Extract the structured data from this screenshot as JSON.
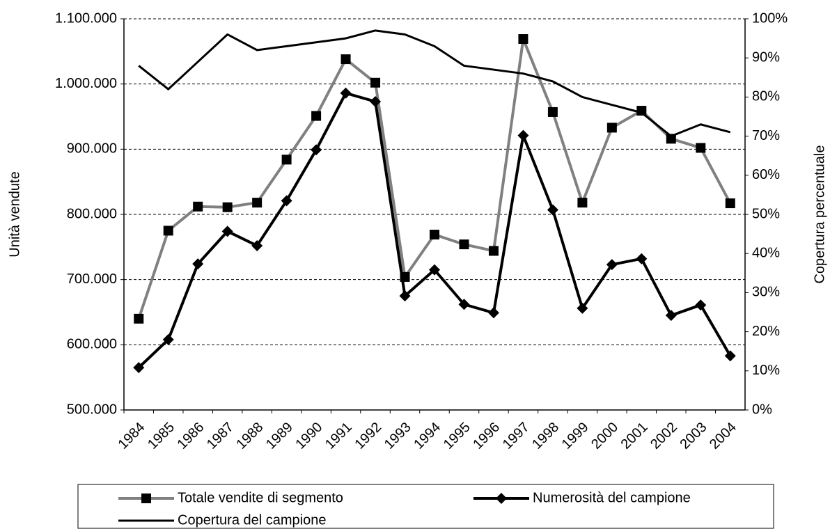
{
  "chart_data": {
    "type": "line",
    "x_label": "",
    "y_label": "Unità vendute",
    "y2_label": "Copertura percentuale",
    "categories": [
      "1984",
      "1985",
      "1986",
      "1987",
      "1988",
      "1989",
      "1990",
      "1991",
      "1992",
      "1993",
      "1994",
      "1995",
      "1996",
      "1997",
      "1998",
      "1999",
      "2000",
      "2001",
      "2002",
      "2003",
      "2004"
    ],
    "series": [
      {
        "name": "Totale vendite di segmento",
        "color": "#808080",
        "marker": "square",
        "values": [
          640000,
          775000,
          812000,
          811000,
          818000,
          884000,
          951000,
          1038000,
          1002000,
          704000,
          769000,
          754000,
          744000,
          1069000,
          957000,
          818000,
          933000,
          959000,
          916000,
          902000,
          817000
        ]
      },
      {
        "name": "Numerosità del campione",
        "color": "#000000",
        "marker": "diamond",
        "values": [
          565000,
          608000,
          724000,
          774000,
          752000,
          821000,
          899000,
          986000,
          973000,
          675000,
          715000,
          662000,
          649000,
          921000,
          807000,
          656000,
          723000,
          732000,
          645000,
          661000,
          583000
        ]
      },
      {
        "name": "Copertura del campione",
        "color": "#000000",
        "axis": "y2",
        "values": [
          88,
          82,
          89,
          96,
          92,
          93,
          94,
          95,
          97,
          96,
          93,
          88,
          87,
          86,
          84,
          80,
          78,
          76,
          70,
          73,
          71
        ]
      }
    ],
    "ylim": [
      500000,
      1100000
    ],
    "yticks": [
      {
        "value": 500000,
        "label": "500.000"
      },
      {
        "value": 600000,
        "label": "600.000"
      },
      {
        "value": 700000,
        "label": "700.000"
      },
      {
        "value": 800000,
        "label": "800.000"
      },
      {
        "value": 900000,
        "label": "900.000"
      },
      {
        "value": 1000000,
        "label": "1.000.000"
      },
      {
        "value": 1100000,
        "label": "1.100.000"
      }
    ],
    "y2lim": [
      0,
      100
    ],
    "y2ticks": [
      {
        "value": 0,
        "label": "0%"
      },
      {
        "value": 10,
        "label": "10%"
      },
      {
        "value": 20,
        "label": "20%"
      },
      {
        "value": 30,
        "label": "30%"
      },
      {
        "value": 40,
        "label": "40%"
      },
      {
        "value": 50,
        "label": "50%"
      },
      {
        "value": 60,
        "label": "60%"
      },
      {
        "value": 70,
        "label": "70%"
      },
      {
        "value": 80,
        "label": "80%"
      },
      {
        "value": 90,
        "label": "90%"
      },
      {
        "value": 100,
        "label": "100%"
      }
    ],
    "grid": true,
    "legend": "bottom"
  }
}
